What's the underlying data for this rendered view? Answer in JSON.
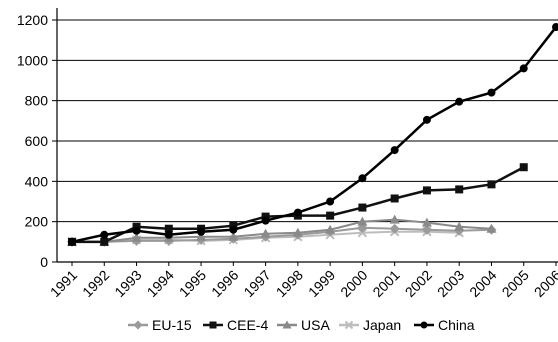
{
  "chart_data": {
    "type": "line",
    "title": "",
    "xlabel": "",
    "ylabel": "",
    "x": [
      "1991",
      "1992",
      "1993",
      "1994",
      "1995",
      "1996",
      "1997",
      "1998",
      "1999",
      "2000",
      "2001",
      "2002",
      "2003",
      "2004",
      "2005",
      "2006"
    ],
    "ylim": [
      0,
      1200
    ],
    "yticks": [
      0,
      200,
      400,
      600,
      800,
      1000,
      1200
    ],
    "grid": "horizontal",
    "legend_position": "bottom",
    "series": [
      {
        "name": "EU-15",
        "color": "#9a9a9a",
        "marker": "diamond",
        "values": [
          100,
          100,
          105,
          105,
          110,
          115,
          125,
          135,
          150,
          170,
          165,
          160,
          155,
          160,
          null,
          null
        ]
      },
      {
        "name": "CEE-4",
        "color": "#111111",
        "marker": "square",
        "values": [
          100,
          100,
          175,
          165,
          165,
          180,
          225,
          230,
          230,
          270,
          315,
          355,
          360,
          385,
          470,
          null
        ]
      },
      {
        "name": "USA",
        "color": "#8a8a8a",
        "marker": "triangle",
        "values": [
          100,
          100,
          120,
          120,
          125,
          125,
          140,
          145,
          160,
          200,
          210,
          195,
          175,
          165,
          null,
          null
        ]
      },
      {
        "name": "Japan",
        "color": "#bdbdbd",
        "marker": "x",
        "values": [
          100,
          100,
          110,
          110,
          105,
          110,
          120,
          125,
          135,
          145,
          150,
          150,
          145,
          null,
          null,
          null
        ]
      },
      {
        "name": "China",
        "color": "#000000",
        "marker": "circle",
        "values": [
          100,
          135,
          155,
          135,
          150,
          160,
          205,
          245,
          300,
          415,
          555,
          705,
          795,
          840,
          960,
          1165
        ]
      }
    ]
  }
}
